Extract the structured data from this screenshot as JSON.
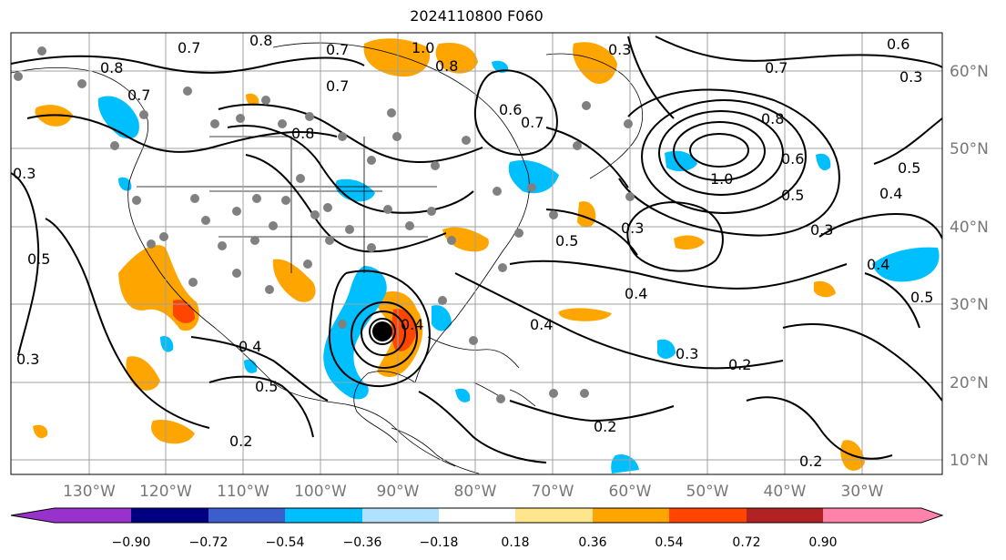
{
  "title": "2024110800 F060",
  "latitude_labels": [
    "60°N",
    "50°N",
    "40°N",
    "30°N",
    "20°N",
    "10°N"
  ],
  "longitude_labels": [
    "130°W",
    "120°W",
    "110°W",
    "100°W",
    "90°W",
    "80°W",
    "70°W",
    "60°W",
    "50°W",
    "40°W",
    "30°W"
  ],
  "colorbar": {
    "ticks": [
      "−0.90",
      "−0.72",
      "−0.54",
      "−0.36",
      "−0.18",
      "0.18",
      "0.36",
      "0.54",
      "0.72",
      "0.90"
    ],
    "colors": [
      "#9932cc",
      "#000080",
      "#3a5fcd",
      "#00bfff",
      "#b0e2ff",
      "#ffffff",
      "#ffe68c",
      "#ffa500",
      "#ff4500",
      "#b22222",
      "#ff82ab"
    ]
  },
  "contour_labels": [
    "0.8",
    "0.7",
    "0.8",
    "0.7",
    "1.0",
    "0.8",
    "0.3",
    "0.6",
    "0.7",
    "0.3",
    "0.7",
    "0.8",
    "0.7",
    "0.6",
    "0.7",
    "0.8",
    "1.0",
    "0.5",
    "0.4",
    "0.3",
    "0.5",
    "0.6",
    "0.5",
    "0.4",
    "0.3",
    "0.4",
    "0.4",
    "0.5",
    "0.3",
    "0.4",
    "0.5",
    "0.3",
    "0.2",
    "0.2",
    "0.2",
    "0.4",
    "0.3",
    "0.5",
    "0.2"
  ],
  "colors": {
    "contour": "#000000",
    "positive_fill": "#ffa500",
    "negative_fill": "#00bfff",
    "station": "#808080",
    "storm_center": "#000000",
    "grid": "#a0a0a0"
  }
}
